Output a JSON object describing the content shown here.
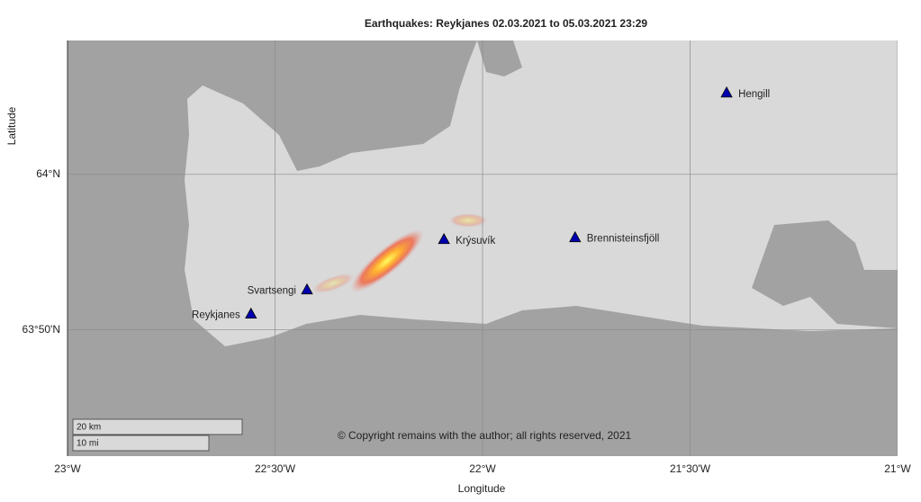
{
  "chart_data": {
    "type": "map",
    "title": "Earthquakes: Reykjanes 02.03.2021 to 05.03.2021 23:29",
    "xlabel": "Longitude",
    "ylabel": "Latitude",
    "xlim": [
      -23,
      -21
    ],
    "ylim": [
      63.698,
      64.1435
    ],
    "xticks": [
      {
        "value": -23,
        "label": "23°W"
      },
      {
        "value": -22.5,
        "label": "22°30'W"
      },
      {
        "value": -22,
        "label": "22°W"
      },
      {
        "value": -21.5,
        "label": "21°30'W"
      },
      {
        "value": -21,
        "label": "21°W"
      }
    ],
    "yticks": [
      {
        "value": 64,
        "label": "64°N"
      },
      {
        "value": 63.8333,
        "label": "63°50'N"
      }
    ],
    "grid": true,
    "stations": {
      "color": "#0000b0",
      "names": [
        "Hengill",
        "Brennisteinsfjöll",
        "Krýsuvík",
        "Svartsengi",
        "Reykjanes"
      ],
      "x": [
        -21.412,
        -21.777,
        -22.093,
        -22.423,
        -22.558
      ],
      "values": [
        64.0877,
        63.9326,
        63.9306,
        63.8767,
        63.8507
      ]
    },
    "scale_bar": [
      "20 km",
      "10 mi"
    ],
    "copyright": "© Copyright remains with the author; all rights reserved, 2021"
  }
}
